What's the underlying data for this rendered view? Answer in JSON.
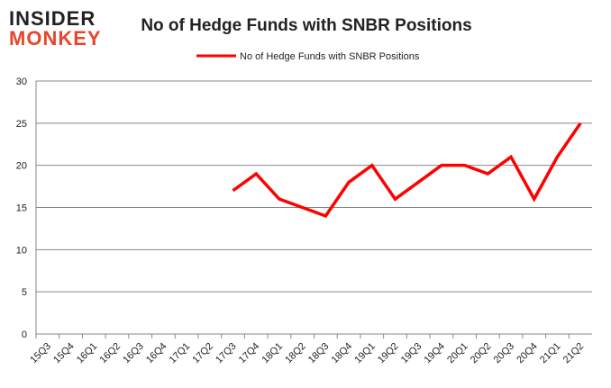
{
  "logo": {
    "line1": "INSIDER",
    "line2": "MONKEY"
  },
  "chart_data": {
    "type": "line",
    "title": "No of Hedge Funds with SNBR Positions",
    "legend": "No of Hedge Funds with SNBR Positions",
    "legend_position": "top-center",
    "categories": [
      "15Q3",
      "15Q4",
      "16Q1",
      "16Q2",
      "16Q3",
      "16Q4",
      "17Q1",
      "17Q2",
      "17Q3",
      "17Q4",
      "18Q1",
      "18Q2",
      "18Q3",
      "18Q4",
      "19Q1",
      "19Q2",
      "19Q3",
      "19Q4",
      "20Q1",
      "20Q2",
      "20Q3",
      "20Q4",
      "21Q1",
      "21Q2"
    ],
    "series": [
      {
        "name": "No of Hedge Funds with SNBR Positions",
        "color": "#ff0000",
        "values": [
          null,
          null,
          null,
          null,
          null,
          null,
          null,
          null,
          17,
          19,
          16,
          15,
          14,
          18,
          20,
          16,
          18,
          20,
          20,
          19,
          21,
          16,
          21,
          25
        ]
      }
    ],
    "ylim": [
      0,
      30
    ],
    "yticks": [
      0,
      5,
      10,
      15,
      20,
      25,
      30
    ],
    "grid": true
  }
}
